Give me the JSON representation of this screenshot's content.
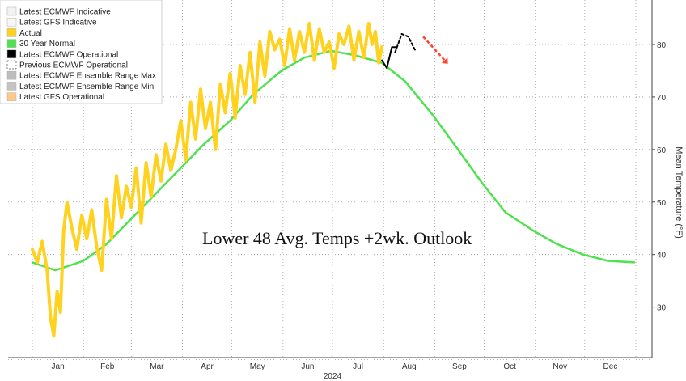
{
  "chart_data": {
    "type": "line",
    "overlay_text": "Lower 48 Avg. Temps +2wk. Outlook",
    "ylabel": "Mean Temperature (°F)",
    "x_month_labels": [
      "Jan",
      "Feb",
      "Mar",
      "Apr",
      "May",
      "Jun",
      "Jul",
      "Aug",
      "Sep",
      "Oct",
      "Nov",
      "Dec"
    ],
    "x_year_label": "2024",
    "ylim": [
      20,
      87
    ],
    "yticks": [
      30,
      40,
      50,
      60,
      70,
      80
    ],
    "grid": true,
    "legend_position": "top-left",
    "legend": [
      {
        "label": "Latest ECMWF Indicative",
        "color": "#f2f2f2"
      },
      {
        "label": "Latest GFS Indicative",
        "color": "#f7f7f7"
      },
      {
        "label": "Actual",
        "color": "#ffd21f"
      },
      {
        "label": "30 Year Normal",
        "color": "#4ee24e"
      },
      {
        "label": "Latest ECMWF Operational",
        "color": "#000000"
      },
      {
        "label": "Previous ECMWF Operational",
        "color": "#000000"
      },
      {
        "label": "Latest ECMWF Ensemble Range Max",
        "color": "#bdbdbd"
      },
      {
        "label": "Latest ECMWF Ensemble Range Min",
        "color": "#c4c4c4"
      },
      {
        "label": "Latest GFS Operational",
        "color": "#ffc98a"
      }
    ],
    "series": [
      {
        "name": "30 Year Normal",
        "color": "#4ee24e",
        "x": [
          1,
          15,
          32,
          46,
          60,
          74,
          91,
          105,
          121,
          135,
          152,
          166,
          182,
          196,
          213,
          227,
          244,
          258,
          274,
          288,
          305,
          319,
          335,
          350,
          366
        ],
        "values": [
          38.5,
          37.0,
          38.8,
          42.0,
          46.5,
          51.0,
          56.5,
          61.0,
          65.5,
          70.5,
          75.0,
          77.5,
          78.8,
          78.0,
          76.5,
          73.0,
          66.5,
          60.5,
          53.5,
          48.0,
          44.5,
          42.0,
          40.0,
          38.8,
          38.5
        ]
      },
      {
        "name": "Actual",
        "color": "#ffd21f",
        "x": [
          1,
          4,
          7,
          10,
          12,
          14,
          16,
          18,
          20,
          22,
          25,
          28,
          31,
          34,
          37,
          40,
          43,
          46,
          49,
          52,
          55,
          58,
          61,
          64,
          67,
          70,
          73,
          76,
          79,
          82,
          85,
          88,
          91,
          94,
          97,
          100,
          103,
          106,
          109,
          112,
          115,
          118,
          121,
          124,
          127,
          130,
          133,
          136,
          139,
          142,
          145,
          148,
          151,
          154,
          157,
          160,
          163,
          166,
          169,
          172,
          175,
          178,
          181,
          184,
          187,
          190,
          193,
          196,
          199,
          202,
          205,
          207,
          209,
          211,
          213
        ],
        "values": [
          41.0,
          38.5,
          42.5,
          37.0,
          28.0,
          24.5,
          33.0,
          29.0,
          44.5,
          50.0,
          45.0,
          41.0,
          47.5,
          43.0,
          48.5,
          41.5,
          37.0,
          50.5,
          43.0,
          55.0,
          47.0,
          53.0,
          49.0,
          56.5,
          46.0,
          57.5,
          51.0,
          59.0,
          54.0,
          61.0,
          56.0,
          60.0,
          65.5,
          58.0,
          69.0,
          62.0,
          71.5,
          64.0,
          69.0,
          60.0,
          72.5,
          67.0,
          74.5,
          66.0,
          76.0,
          70.5,
          78.5,
          69.0,
          80.5,
          74.0,
          82.5,
          79.0,
          81.0,
          76.0,
          83.0,
          77.0,
          82.5,
          78.5,
          84.0,
          77.0,
          83.0,
          78.5,
          80.5,
          75.5,
          82.0,
          80.0,
          83.5,
          77.0,
          82.5,
          77.5,
          84.0,
          80.0,
          82.5,
          76.5,
          79.5
        ]
      },
      {
        "name": "Latest ECMWF Operational",
        "color": "#000000",
        "x": [
          213,
          216,
          219,
          222
        ],
        "values": [
          77.0,
          75.5,
          79.5,
          79.5
        ]
      },
      {
        "name": "Previous ECMWF Operational",
        "color": "#000000",
        "x": [
          221,
          225,
          229,
          233
        ],
        "values": [
          78.5,
          82.0,
          81.5,
          79.0
        ]
      }
    ],
    "annotation_arrow": {
      "color": "#ff4433",
      "x_start": 238,
      "y_start": 81.5,
      "x_end": 251,
      "y_end": 77.0
    }
  }
}
